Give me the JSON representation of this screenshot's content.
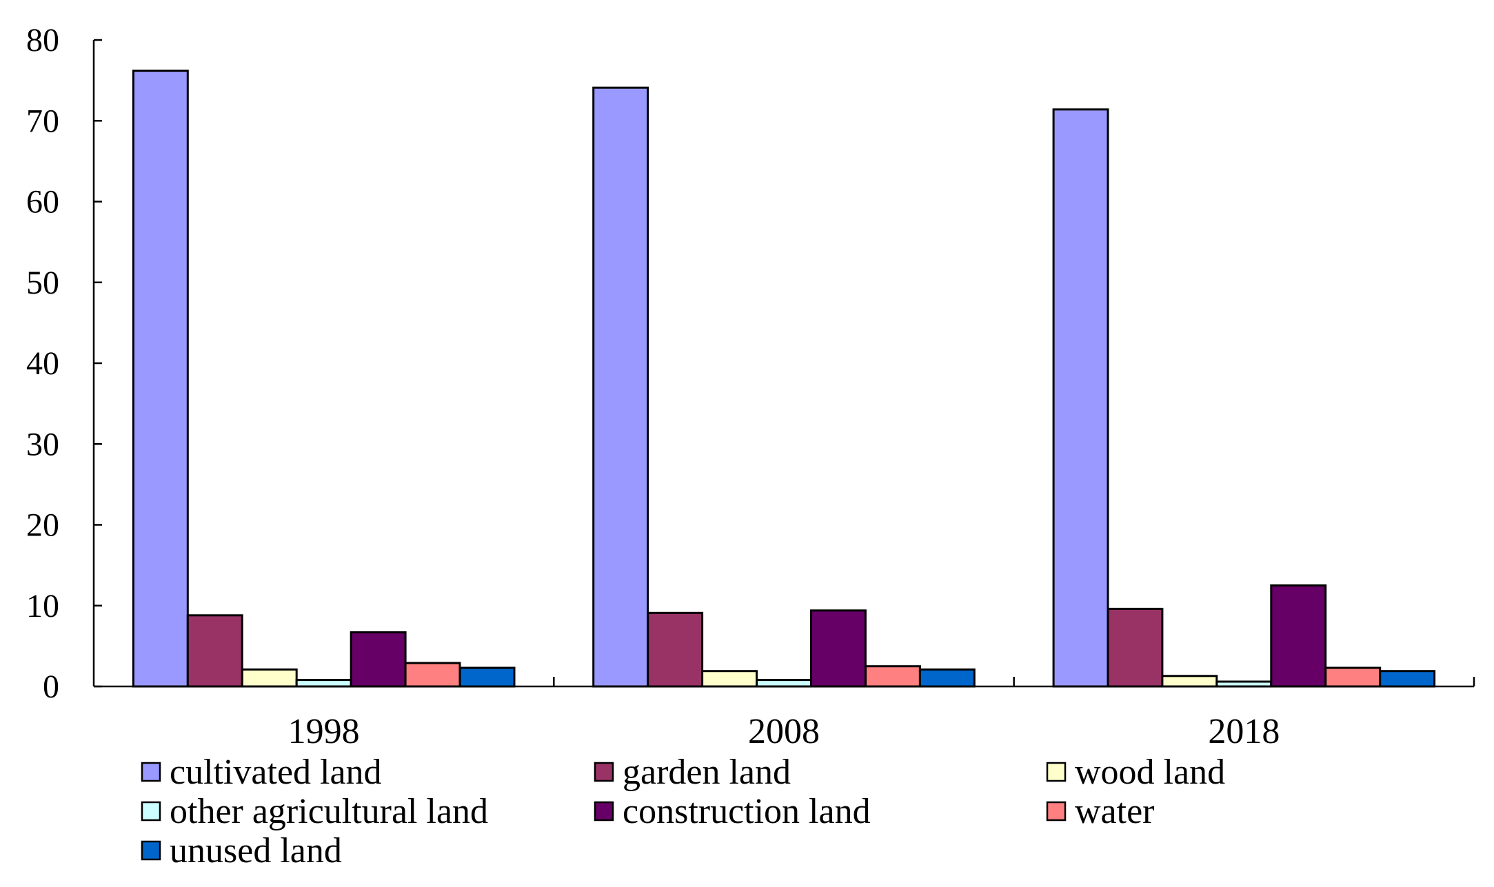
{
  "chart_data": {
    "type": "bar",
    "title": "",
    "xlabel": "",
    "ylabel": "",
    "ylim": [
      0,
      80
    ],
    "yticks": [
      0,
      10,
      20,
      30,
      40,
      50,
      60,
      70,
      80
    ],
    "grid": false,
    "legend_position": "bottom",
    "categories": [
      "1998",
      "2008",
      "2018"
    ],
    "series": [
      {
        "name": "cultivated land",
        "color": "#9999FF",
        "values": [
          76.2,
          74.1,
          71.4
        ]
      },
      {
        "name": "garden land",
        "color": "#993366",
        "values": [
          8.8,
          9.1,
          9.6
        ]
      },
      {
        "name": "wood land",
        "color": "#FFFFCC",
        "values": [
          2.1,
          1.9,
          1.3
        ]
      },
      {
        "name": "other agricultural land",
        "color": "#CCFFFF",
        "values": [
          0.8,
          0.8,
          0.6
        ]
      },
      {
        "name": "construction land",
        "color": "#660066",
        "values": [
          6.7,
          9.4,
          12.5
        ]
      },
      {
        "name": "water",
        "color": "#FF8080",
        "values": [
          2.9,
          2.5,
          2.3
        ]
      },
      {
        "name": "unused land",
        "color": "#0066CC",
        "values": [
          2.3,
          2.1,
          1.9
        ]
      }
    ]
  }
}
